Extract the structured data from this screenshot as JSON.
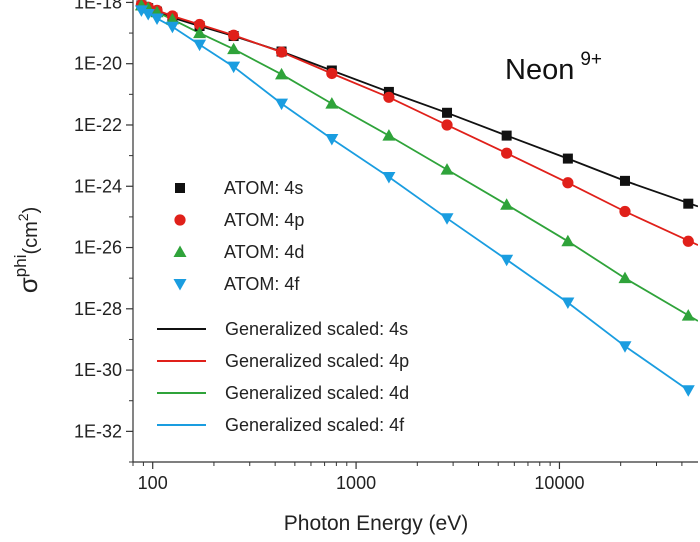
{
  "chart_data": {
    "type": "scatter",
    "title": "",
    "annotation": {
      "text": "Neon",
      "superscript": "9+"
    },
    "xlabel": "Photon Energy (eV)",
    "ylabel": {
      "symbol": "σ",
      "sup": "phi",
      "unit_open": "(cm",
      "unit_sup": "2",
      "unit_close": ")"
    },
    "x_scale": "log",
    "y_scale": "log",
    "xlim": [
      80,
      48000
    ],
    "ylim": [
      1e-33,
      1.2e-18
    ],
    "x_ticks": [
      {
        "value": 100,
        "label": "100"
      },
      {
        "value": 1000,
        "label": "1000"
      },
      {
        "value": 10000,
        "label": "10000"
      }
    ],
    "y_ticks": [
      {
        "value": 1e-18,
        "label": "1E-18"
      },
      {
        "value": 1e-20,
        "label": "1E-20"
      },
      {
        "value": 1e-22,
        "label": "1E-22"
      },
      {
        "value": 1e-24,
        "label": "1E-24"
      },
      {
        "value": 1e-26,
        "label": "1E-26"
      },
      {
        "value": 1e-28,
        "label": "1E-28"
      },
      {
        "value": 1e-30,
        "label": "1E-30"
      },
      {
        "value": 1e-32,
        "label": "1E-32"
      }
    ],
    "grid": false,
    "legend_placement": "left",
    "series": [
      {
        "name": "ATOM: 4s",
        "kind": "markers",
        "marker": "square",
        "color": "#111111",
        "x": [
          88,
          95,
          105,
          125,
          170,
          250,
          430,
          760,
          1450,
          2800,
          5500,
          11000,
          21000,
          43000
        ],
        "y": [
          8e-19,
          6.5e-19,
          5e-19,
          3.2e-19,
          1.7e-19,
          8e-20,
          2.5e-20,
          6e-21,
          1.2e-21,
          2.5e-22,
          4.5e-23,
          8e-24,
          1.5e-24,
          2.7e-25
        ]
      },
      {
        "name": "ATOM: 4p",
        "kind": "markers",
        "marker": "circle",
        "color": "#e0201a",
        "x": [
          88,
          95,
          105,
          125,
          170,
          250,
          430,
          760,
          1450,
          2800,
          5500,
          11000,
          21000,
          43000
        ],
        "y": [
          8.5e-19,
          7e-19,
          5.5e-19,
          3.6e-19,
          1.9e-19,
          8.5e-20,
          2.4e-20,
          4.8e-21,
          8e-22,
          1e-22,
          1.2e-23,
          1.3e-24,
          1.5e-25,
          1.6e-26
        ]
      },
      {
        "name": "ATOM: 4d",
        "kind": "markers",
        "marker": "triangle-up",
        "color": "#2fa33a",
        "x": [
          88,
          95,
          105,
          125,
          170,
          250,
          430,
          760,
          1450,
          2800,
          5500,
          11000,
          21000,
          43000
        ],
        "y": [
          8e-19,
          6.5e-19,
          4.8e-19,
          2.8e-19,
          1e-19,
          3e-20,
          4.5e-21,
          5e-22,
          4.5e-23,
          3.5e-24,
          2.5e-25,
          1.6e-26,
          1e-27,
          6e-29
        ]
      },
      {
        "name": "ATOM: 4f",
        "kind": "markers",
        "marker": "triangle-down",
        "color": "#1a9de0",
        "x": [
          88,
          95,
          105,
          125,
          170,
          250,
          430,
          760,
          1450,
          2800,
          5500,
          11000,
          21000,
          43000
        ],
        "y": [
          5.5e-19,
          4.2e-19,
          3e-19,
          1.6e-19,
          4.2e-20,
          8e-21,
          5e-22,
          3.5e-23,
          2e-24,
          9e-26,
          4e-27,
          1.6e-28,
          6e-30,
          2.2e-31
        ]
      },
      {
        "name": "Generalized scaled: 4s",
        "kind": "line",
        "color": "#111111",
        "x": [
          88,
          95,
          105,
          125,
          170,
          250,
          430,
          760,
          1450,
          2800,
          5500,
          11000,
          21000,
          48000
        ],
        "y": [
          8e-19,
          6.5e-19,
          5e-19,
          3.2e-19,
          1.7e-19,
          8e-20,
          2.5e-20,
          6e-21,
          1.2e-21,
          2.5e-22,
          4.5e-23,
          8e-24,
          1.5e-24,
          2.2e-25
        ]
      },
      {
        "name": "Generalized scaled: 4p",
        "kind": "line",
        "color": "#e0201a",
        "x": [
          88,
          95,
          105,
          125,
          170,
          250,
          430,
          760,
          1450,
          2800,
          5500,
          11000,
          21000,
          48000
        ],
        "y": [
          8.5e-19,
          7e-19,
          5.5e-19,
          3.6e-19,
          1.9e-19,
          8.5e-20,
          2.4e-20,
          4.8e-21,
          8e-22,
          1e-22,
          1.2e-23,
          1.3e-24,
          1.5e-25,
          1.2e-26
        ]
      },
      {
        "name": "Generalized scaled: 4d",
        "kind": "line",
        "color": "#2fa33a",
        "x": [
          88,
          95,
          105,
          125,
          170,
          250,
          430,
          760,
          1450,
          2800,
          5500,
          11000,
          21000,
          48000
        ],
        "y": [
          8e-19,
          6.5e-19,
          4.8e-19,
          2.8e-19,
          1e-19,
          3e-20,
          4.5e-21,
          5e-22,
          4.5e-23,
          3.5e-24,
          2.5e-25,
          1.6e-26,
          1e-27,
          4e-29
        ]
      },
      {
        "name": "Generalized scaled: 4f",
        "kind": "line",
        "color": "#1a9de0",
        "x": [
          88,
          95,
          105,
          125,
          170,
          250,
          430,
          760,
          1450,
          2800,
          5500,
          11000,
          21000,
          43000
        ],
        "y": [
          5.5e-19,
          4.2e-19,
          3e-19,
          1.6e-19,
          4.2e-20,
          8e-21,
          5e-22,
          3.5e-23,
          2e-24,
          9e-26,
          4e-27,
          1.6e-28,
          6e-30,
          2.2e-31
        ]
      }
    ]
  }
}
